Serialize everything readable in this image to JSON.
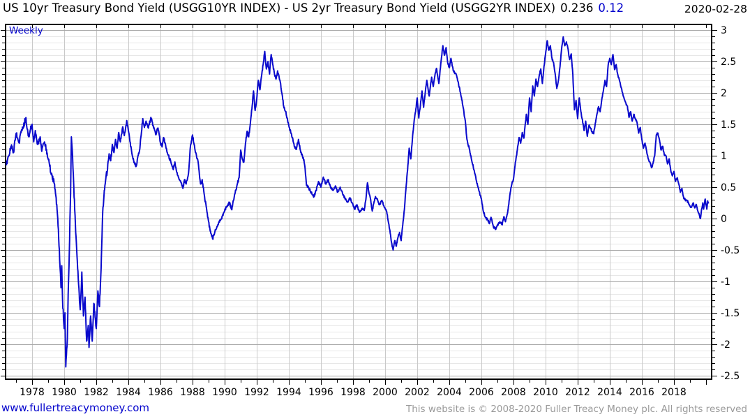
{
  "header": {
    "title": "US 10yr Treasury Bond Yield (USGG10YR INDEX) - US 2yr Treasury Bond Yield (USGG2YR INDEX)",
    "last_value": "0.236",
    "change_value": "0.12",
    "date": "2020-02-28"
  },
  "chart": {
    "frequency_label": "Weekly"
  },
  "footer": {
    "website": "www.fullertreacymoney.com",
    "copyright": "This website is © 2008-2020 Fuller Treacy Money plc. All rights reserved"
  },
  "colors": {
    "line": "#0a0acc",
    "accent_blue": "#0000cc",
    "grid_major": "#a8a8a8",
    "grid_vertical": "#c9c9c9",
    "grid_minor": "#e7e7e7",
    "frame": "#000000",
    "footer_gray": "#9a9a9a"
  },
  "chart_data": {
    "type": "line",
    "title": "US 10yr Treasury Bond Yield (USGG10YR INDEX) - US 2yr Treasury Bond Yield (USGG2YR INDEX)",
    "series_name": "10yr minus 2yr Treasury yield spread (weekly)",
    "xlabel": "",
    "ylabel": "",
    "x_domain": [
      1976.35,
      2020.35
    ],
    "y_domain": [
      -2.5556,
      3.0889
    ],
    "x_ticks": [
      1978,
      1980,
      1982,
      1984,
      1986,
      1988,
      1990,
      1992,
      1994,
      1996,
      1998,
      2000,
      2002,
      2004,
      2006,
      2008,
      2010,
      2012,
      2014,
      2016,
      2018
    ],
    "y_ticks": [
      3,
      2.5,
      2,
      1.5,
      1,
      0.5,
      0,
      -0.5,
      -1,
      -1.5,
      -2,
      -2.5
    ],
    "grid": {
      "x_major_step": 2,
      "y_major_step": 0.5,
      "y_minor_step": 0.1,
      "grid_on": true
    },
    "legend_position": "none",
    "texture_jitter": {
      "pre1983": 0.09,
      "pre1996": 0.05,
      "default": 0.035
    },
    "points": [
      [
        1976.4,
        0.85
      ],
      [
        1976.55,
        1.0
      ],
      [
        1976.7,
        1.15
      ],
      [
        1976.85,
        1.05
      ],
      [
        1977.0,
        1.35
      ],
      [
        1977.1,
        1.28
      ],
      [
        1977.2,
        1.2
      ],
      [
        1977.3,
        1.38
      ],
      [
        1977.45,
        1.45
      ],
      [
        1977.6,
        1.6
      ],
      [
        1977.7,
        1.42
      ],
      [
        1977.8,
        1.3
      ],
      [
        1977.9,
        1.42
      ],
      [
        1978.0,
        1.5
      ],
      [
        1978.1,
        1.22
      ],
      [
        1978.2,
        1.4
      ],
      [
        1978.35,
        1.18
      ],
      [
        1978.5,
        1.3
      ],
      [
        1978.6,
        1.07
      ],
      [
        1978.75,
        1.2
      ],
      [
        1978.9,
        1.1
      ],
      [
        1979.0,
        0.95
      ],
      [
        1979.1,
        0.83
      ],
      [
        1979.25,
        0.68
      ],
      [
        1979.4,
        0.55
      ],
      [
        1979.5,
        0.33
      ],
      [
        1979.6,
        0.0
      ],
      [
        1979.7,
        -0.5
      ],
      [
        1979.75,
        -0.8
      ],
      [
        1979.8,
        -1.1
      ],
      [
        1979.85,
        -0.75
      ],
      [
        1979.9,
        -1.3
      ],
      [
        1980.0,
        -1.75
      ],
      [
        1980.05,
        -1.5
      ],
      [
        1980.1,
        -2.36
      ],
      [
        1980.2,
        -1.9
      ],
      [
        1980.25,
        -1.2
      ],
      [
        1980.3,
        -0.75
      ],
      [
        1980.4,
        0.4
      ],
      [
        1980.45,
        1.3
      ],
      [
        1980.5,
        1.1
      ],
      [
        1980.55,
        0.8
      ],
      [
        1980.6,
        0.5
      ],
      [
        1980.7,
        -0.1
      ],
      [
        1980.8,
        -0.6
      ],
      [
        1980.9,
        -1.05
      ],
      [
        1981.0,
        -1.45
      ],
      [
        1981.05,
        -1.2
      ],
      [
        1981.1,
        -0.85
      ],
      [
        1981.2,
        -1.55
      ],
      [
        1981.3,
        -1.25
      ],
      [
        1981.4,
        -1.95
      ],
      [
        1981.5,
        -1.7
      ],
      [
        1981.55,
        -2.05
      ],
      [
        1981.65,
        -1.55
      ],
      [
        1981.75,
        -1.95
      ],
      [
        1981.85,
        -1.35
      ],
      [
        1981.95,
        -1.6
      ],
      [
        1982.0,
        -1.75
      ],
      [
        1982.1,
        -1.15
      ],
      [
        1982.2,
        -1.4
      ],
      [
        1982.3,
        -0.8
      ],
      [
        1982.4,
        0.1
      ],
      [
        1982.5,
        0.45
      ],
      [
        1982.6,
        0.65
      ],
      [
        1982.7,
        0.78
      ],
      [
        1982.8,
        1.03
      ],
      [
        1982.9,
        0.92
      ],
      [
        1983.0,
        1.18
      ],
      [
        1983.1,
        1.05
      ],
      [
        1983.2,
        1.26
      ],
      [
        1983.3,
        1.12
      ],
      [
        1983.4,
        1.37
      ],
      [
        1983.5,
        1.22
      ],
      [
        1983.65,
        1.46
      ],
      [
        1983.75,
        1.32
      ],
      [
        1983.9,
        1.56
      ],
      [
        1984.0,
        1.4
      ],
      [
        1984.1,
        1.22
      ],
      [
        1984.25,
        1.0
      ],
      [
        1984.35,
        0.89
      ],
      [
        1984.5,
        0.84
      ],
      [
        1984.6,
        1.0
      ],
      [
        1984.7,
        1.09
      ],
      [
        1984.8,
        1.33
      ],
      [
        1984.9,
        1.59
      ],
      [
        1985.0,
        1.45
      ],
      [
        1985.1,
        1.55
      ],
      [
        1985.25,
        1.44
      ],
      [
        1985.4,
        1.61
      ],
      [
        1985.55,
        1.48
      ],
      [
        1985.7,
        1.34
      ],
      [
        1985.85,
        1.44
      ],
      [
        1986.0,
        1.2
      ],
      [
        1986.1,
        1.14
      ],
      [
        1986.2,
        1.29
      ],
      [
        1986.35,
        1.12
      ],
      [
        1986.5,
        1.0
      ],
      [
        1986.65,
        0.9
      ],
      [
        1986.8,
        0.78
      ],
      [
        1986.9,
        0.9
      ],
      [
        1987.0,
        0.75
      ],
      [
        1987.1,
        0.68
      ],
      [
        1987.25,
        0.6
      ],
      [
        1987.4,
        0.48
      ],
      [
        1987.5,
        0.62
      ],
      [
        1987.6,
        0.55
      ],
      [
        1987.75,
        0.72
      ],
      [
        1987.85,
        1.1
      ],
      [
        1988.0,
        1.33
      ],
      [
        1988.1,
        1.18
      ],
      [
        1988.2,
        1.05
      ],
      [
        1988.35,
        0.9
      ],
      [
        1988.5,
        0.55
      ],
      [
        1988.6,
        0.62
      ],
      [
        1988.75,
        0.35
      ],
      [
        1988.9,
        0.1
      ],
      [
        1989.0,
        -0.05
      ],
      [
        1989.1,
        -0.2
      ],
      [
        1989.25,
        -0.32
      ],
      [
        1989.4,
        -0.2
      ],
      [
        1989.5,
        -0.15
      ],
      [
        1989.65,
        -0.05
      ],
      [
        1989.8,
        0.0
      ],
      [
        1989.9,
        0.05
      ],
      [
        1990.0,
        0.12
      ],
      [
        1990.15,
        0.2
      ],
      [
        1990.3,
        0.25
      ],
      [
        1990.45,
        0.14
      ],
      [
        1990.6,
        0.35
      ],
      [
        1990.75,
        0.5
      ],
      [
        1990.9,
        0.65
      ],
      [
        1991.0,
        1.09
      ],
      [
        1991.1,
        0.95
      ],
      [
        1991.2,
        0.9
      ],
      [
        1991.3,
        1.2
      ],
      [
        1991.4,
        1.39
      ],
      [
        1991.5,
        1.3
      ],
      [
        1991.6,
        1.51
      ],
      [
        1991.7,
        1.75
      ],
      [
        1991.8,
        2.03
      ],
      [
        1991.9,
        1.72
      ],
      [
        1992.0,
        1.9
      ],
      [
        1992.1,
        2.2
      ],
      [
        1992.2,
        2.05
      ],
      [
        1992.3,
        2.27
      ],
      [
        1992.4,
        2.45
      ],
      [
        1992.5,
        2.66
      ],
      [
        1992.6,
        2.38
      ],
      [
        1992.7,
        2.5
      ],
      [
        1992.8,
        2.3
      ],
      [
        1992.9,
        2.61
      ],
      [
        1993.0,
        2.45
      ],
      [
        1993.1,
        2.31
      ],
      [
        1993.2,
        2.22
      ],
      [
        1993.3,
        2.35
      ],
      [
        1993.45,
        2.2
      ],
      [
        1993.6,
        1.95
      ],
      [
        1993.7,
        1.76
      ],
      [
        1993.8,
        1.7
      ],
      [
        1993.9,
        1.6
      ],
      [
        1994.0,
        1.48
      ],
      [
        1994.15,
        1.35
      ],
      [
        1994.3,
        1.2
      ],
      [
        1994.45,
        1.1
      ],
      [
        1994.6,
        1.26
      ],
      [
        1994.75,
        1.05
      ],
      [
        1994.9,
        0.97
      ],
      [
        1995.0,
        0.83
      ],
      [
        1995.1,
        0.53
      ],
      [
        1995.25,
        0.48
      ],
      [
        1995.4,
        0.42
      ],
      [
        1995.55,
        0.34
      ],
      [
        1995.7,
        0.45
      ],
      [
        1995.85,
        0.59
      ],
      [
        1996.0,
        0.5
      ],
      [
        1996.15,
        0.66
      ],
      [
        1996.3,
        0.55
      ],
      [
        1996.45,
        0.62
      ],
      [
        1996.6,
        0.5
      ],
      [
        1996.75,
        0.45
      ],
      [
        1996.9,
        0.52
      ],
      [
        1997.05,
        0.42
      ],
      [
        1997.2,
        0.5
      ],
      [
        1997.35,
        0.4
      ],
      [
        1997.5,
        0.32
      ],
      [
        1997.65,
        0.26
      ],
      [
        1997.8,
        0.33
      ],
      [
        1997.95,
        0.25
      ],
      [
        1998.1,
        0.15
      ],
      [
        1998.25,
        0.22
      ],
      [
        1998.4,
        0.1
      ],
      [
        1998.55,
        0.16
      ],
      [
        1998.7,
        0.13
      ],
      [
        1998.8,
        0.3
      ],
      [
        1998.9,
        0.57
      ],
      [
        1999.0,
        0.4
      ],
      [
        1999.1,
        0.3
      ],
      [
        1999.2,
        0.12
      ],
      [
        1999.3,
        0.25
      ],
      [
        1999.4,
        0.35
      ],
      [
        1999.5,
        0.31
      ],
      [
        1999.65,
        0.22
      ],
      [
        1999.8,
        0.29
      ],
      [
        1999.95,
        0.18
      ],
      [
        2000.1,
        0.11
      ],
      [
        2000.2,
        -0.05
      ],
      [
        2000.3,
        -0.19
      ],
      [
        2000.4,
        -0.38
      ],
      [
        2000.5,
        -0.5
      ],
      [
        2000.6,
        -0.35
      ],
      [
        2000.7,
        -0.44
      ],
      [
        2000.8,
        -0.3
      ],
      [
        2000.9,
        -0.22
      ],
      [
        2001.0,
        -0.35
      ],
      [
        2001.1,
        -0.1
      ],
      [
        2001.2,
        0.14
      ],
      [
        2001.3,
        0.48
      ],
      [
        2001.4,
        0.77
      ],
      [
        2001.5,
        1.12
      ],
      [
        2001.6,
        0.95
      ],
      [
        2001.7,
        1.26
      ],
      [
        2001.8,
        1.53
      ],
      [
        2001.9,
        1.7
      ],
      [
        2002.0,
        1.92
      ],
      [
        2002.1,
        1.6
      ],
      [
        2002.2,
        1.8
      ],
      [
        2002.3,
        2.03
      ],
      [
        2002.4,
        1.77
      ],
      [
        2002.5,
        2.0
      ],
      [
        2002.6,
        2.2
      ],
      [
        2002.75,
        1.95
      ],
      [
        2002.9,
        2.25
      ],
      [
        2003.0,
        2.1
      ],
      [
        2003.1,
        2.27
      ],
      [
        2003.2,
        2.39
      ],
      [
        2003.35,
        2.15
      ],
      [
        2003.5,
        2.53
      ],
      [
        2003.6,
        2.75
      ],
      [
        2003.7,
        2.6
      ],
      [
        2003.8,
        2.72
      ],
      [
        2003.9,
        2.48
      ],
      [
        2004.0,
        2.4
      ],
      [
        2004.1,
        2.55
      ],
      [
        2004.25,
        2.35
      ],
      [
        2004.4,
        2.31
      ],
      [
        2004.55,
        2.18
      ],
      [
        2004.7,
        2.0
      ],
      [
        2004.85,
        1.79
      ],
      [
        2005.0,
        1.55
      ],
      [
        2005.1,
        1.26
      ],
      [
        2005.25,
        1.11
      ],
      [
        2005.4,
        0.92
      ],
      [
        2005.55,
        0.77
      ],
      [
        2005.7,
        0.59
      ],
      [
        2005.85,
        0.44
      ],
      [
        2006.0,
        0.31
      ],
      [
        2006.1,
        0.14
      ],
      [
        2006.25,
        0.02
      ],
      [
        2006.4,
        -0.02
      ],
      [
        2006.5,
        -0.08
      ],
      [
        2006.6,
        0.02
      ],
      [
        2006.75,
        -0.13
      ],
      [
        2006.9,
        -0.17
      ],
      [
        2007.0,
        -0.1
      ],
      [
        2007.15,
        -0.05
      ],
      [
        2007.3,
        -0.1
      ],
      [
        2007.4,
        0.03
      ],
      [
        2007.5,
        -0.05
      ],
      [
        2007.65,
        0.12
      ],
      [
        2007.8,
        0.42
      ],
      [
        2007.9,
        0.55
      ],
      [
        2008.0,
        0.63
      ],
      [
        2008.1,
        0.85
      ],
      [
        2008.2,
        1.01
      ],
      [
        2008.35,
        1.29
      ],
      [
        2008.45,
        1.2
      ],
      [
        2008.55,
        1.37
      ],
      [
        2008.65,
        1.28
      ],
      [
        2008.8,
        1.66
      ],
      [
        2008.9,
        1.5
      ],
      [
        2009.0,
        1.92
      ],
      [
        2009.1,
        1.7
      ],
      [
        2009.2,
        2.11
      ],
      [
        2009.3,
        1.95
      ],
      [
        2009.4,
        2.22
      ],
      [
        2009.5,
        2.1
      ],
      [
        2009.6,
        2.27
      ],
      [
        2009.7,
        2.38
      ],
      [
        2009.8,
        2.15
      ],
      [
        2009.9,
        2.42
      ],
      [
        2010.0,
        2.62
      ],
      [
        2010.1,
        2.83
      ],
      [
        2010.2,
        2.68
      ],
      [
        2010.3,
        2.75
      ],
      [
        2010.4,
        2.55
      ],
      [
        2010.5,
        2.48
      ],
      [
        2010.6,
        2.3
      ],
      [
        2010.7,
        2.07
      ],
      [
        2010.8,
        2.2
      ],
      [
        2010.9,
        2.42
      ],
      [
        2011.0,
        2.7
      ],
      [
        2011.1,
        2.89
      ],
      [
        2011.2,
        2.75
      ],
      [
        2011.3,
        2.81
      ],
      [
        2011.4,
        2.7
      ],
      [
        2011.5,
        2.53
      ],
      [
        2011.6,
        2.62
      ],
      [
        2011.7,
        2.29
      ],
      [
        2011.8,
        1.73
      ],
      [
        2011.9,
        1.88
      ],
      [
        2012.0,
        1.59
      ],
      [
        2012.1,
        1.92
      ],
      [
        2012.2,
        1.7
      ],
      [
        2012.3,
        1.57
      ],
      [
        2012.4,
        1.4
      ],
      [
        2012.5,
        1.55
      ],
      [
        2012.6,
        1.31
      ],
      [
        2012.7,
        1.48
      ],
      [
        2012.8,
        1.44
      ],
      [
        2012.9,
        1.38
      ],
      [
        2013.0,
        1.35
      ],
      [
        2013.1,
        1.52
      ],
      [
        2013.2,
        1.66
      ],
      [
        2013.3,
        1.78
      ],
      [
        2013.4,
        1.7
      ],
      [
        2013.5,
        1.89
      ],
      [
        2013.6,
        2.03
      ],
      [
        2013.7,
        2.2
      ],
      [
        2013.8,
        2.1
      ],
      [
        2013.9,
        2.44
      ],
      [
        2014.0,
        2.55
      ],
      [
        2014.1,
        2.45
      ],
      [
        2014.2,
        2.61
      ],
      [
        2014.3,
        2.37
      ],
      [
        2014.4,
        2.45
      ],
      [
        2014.5,
        2.29
      ],
      [
        2014.65,
        2.16
      ],
      [
        2014.8,
        2.0
      ],
      [
        2014.95,
        1.87
      ],
      [
        2015.1,
        1.79
      ],
      [
        2015.2,
        1.61
      ],
      [
        2015.3,
        1.7
      ],
      [
        2015.4,
        1.55
      ],
      [
        2015.5,
        1.66
      ],
      [
        2015.6,
        1.58
      ],
      [
        2015.7,
        1.53
      ],
      [
        2015.8,
        1.36
      ],
      [
        2015.9,
        1.45
      ],
      [
        2016.0,
        1.26
      ],
      [
        2016.1,
        1.12
      ],
      [
        2016.2,
        1.2
      ],
      [
        2016.3,
        1.07
      ],
      [
        2016.4,
        0.95
      ],
      [
        2016.5,
        0.9
      ],
      [
        2016.6,
        0.81
      ],
      [
        2016.7,
        0.88
      ],
      [
        2016.8,
        1.0
      ],
      [
        2016.9,
        1.33
      ],
      [
        2017.0,
        1.36
      ],
      [
        2017.1,
        1.25
      ],
      [
        2017.2,
        1.09
      ],
      [
        2017.3,
        1.15
      ],
      [
        2017.4,
        1.01
      ],
      [
        2017.5,
        1.0
      ],
      [
        2017.6,
        0.87
      ],
      [
        2017.7,
        0.95
      ],
      [
        2017.8,
        0.77
      ],
      [
        2017.9,
        0.68
      ],
      [
        2018.0,
        0.75
      ],
      [
        2018.1,
        0.59
      ],
      [
        2018.2,
        0.65
      ],
      [
        2018.3,
        0.55
      ],
      [
        2018.4,
        0.42
      ],
      [
        2018.5,
        0.48
      ],
      [
        2018.6,
        0.34
      ],
      [
        2018.7,
        0.3
      ],
      [
        2018.8,
        0.29
      ],
      [
        2018.9,
        0.26
      ],
      [
        2019.0,
        0.2
      ],
      [
        2019.1,
        0.18
      ],
      [
        2019.2,
        0.25
      ],
      [
        2019.3,
        0.17
      ],
      [
        2019.4,
        0.22
      ],
      [
        2019.5,
        0.11
      ],
      [
        2019.6,
        0.04
      ],
      [
        2019.65,
        0.0
      ],
      [
        2019.7,
        0.1
      ],
      [
        2019.8,
        0.25
      ],
      [
        2019.85,
        0.15
      ],
      [
        2019.95,
        0.31
      ],
      [
        2020.0,
        0.22
      ],
      [
        2020.05,
        0.15
      ],
      [
        2020.1,
        0.28
      ],
      [
        2020.16,
        0.24
      ]
    ]
  }
}
